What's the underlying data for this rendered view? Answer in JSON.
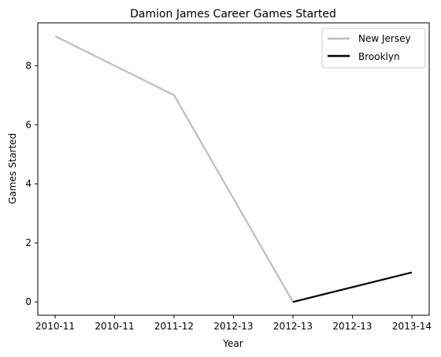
{
  "chart_data": {
    "type": "line",
    "title": "Damion James Career Games Started",
    "xlabel": "Year",
    "ylabel": "Games Started",
    "x_tick_labels": [
      "2010-11",
      "2010-11",
      "2011-12",
      "2012-13",
      "2012-13",
      "2012-13",
      "2013-14"
    ],
    "y_ticks": [
      0,
      2,
      4,
      6,
      8
    ],
    "ylim": [
      -0.45,
      9.45
    ],
    "grid": false,
    "legend_position": "top-right",
    "series": [
      {
        "name": "New Jersey",
        "color": "#bdbdbd",
        "points": [
          {
            "x_index": 0,
            "y": 9
          },
          {
            "x_index": 2,
            "y": 7
          },
          {
            "x_index": 4,
            "y": 0
          }
        ]
      },
      {
        "name": "Brooklyn",
        "color": "#000000",
        "points": [
          {
            "x_index": 4,
            "y": 0
          },
          {
            "x_index": 6,
            "y": 1
          }
        ]
      }
    ]
  }
}
